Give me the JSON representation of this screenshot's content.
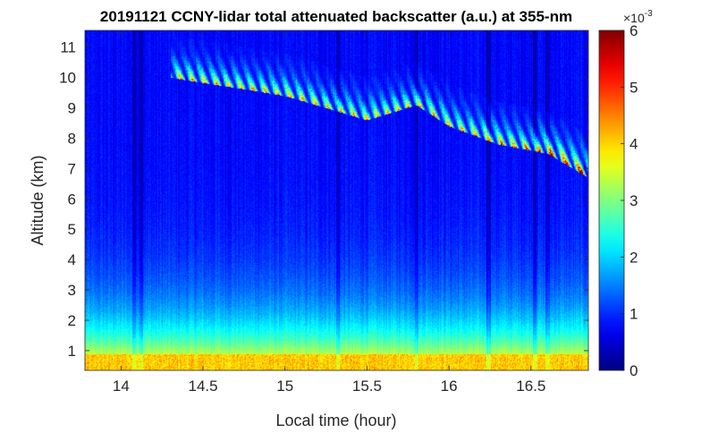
{
  "chart_data": {
    "type": "heatmap",
    "title": "20191121 CCNY-lidar total attenuated backscatter (a.u.) at 355-nm",
    "xlabel": "Local time (hour)",
    "ylabel": "Altitude (km)",
    "xlim": [
      13.78,
      16.85
    ],
    "ylim": [
      0.35,
      11.55
    ],
    "x_ticks": [
      14,
      14.5,
      15,
      15.5,
      16,
      16.5
    ],
    "x_tick_labels": [
      "14",
      "14.5",
      "15",
      "15.5",
      "16",
      "16.5"
    ],
    "y_ticks": [
      1,
      2,
      3,
      4,
      5,
      6,
      7,
      8,
      9,
      10,
      11
    ],
    "y_tick_labels": [
      "1",
      "2",
      "3",
      "4",
      "5",
      "6",
      "7",
      "8",
      "9",
      "10",
      "11"
    ],
    "colormap": "jet",
    "colorbar": {
      "min": 0,
      "max": 6,
      "ticks": [
        0,
        1,
        2,
        3,
        4,
        5,
        6
      ],
      "tick_labels": [
        "0",
        "1",
        "2",
        "3",
        "4",
        "5",
        "6"
      ],
      "multiplier_base": "×10",
      "multiplier_exponent": "-3"
    },
    "colors": {
      "axis": "#262626",
      "background": "#ffffff"
    },
    "features": {
      "boundary_layer": {
        "top_km": 0.9,
        "value_range": [
          3.6,
          4.4
        ]
      },
      "cirrus_base_km": [
        {
          "x": 14.3,
          "y": 10.0
        },
        {
          "x": 14.6,
          "y": 9.75
        },
        {
          "x": 15.0,
          "y": 9.4
        },
        {
          "x": 15.5,
          "y": 8.6
        },
        {
          "x": 15.8,
          "y": 9.1
        },
        {
          "x": 16.0,
          "y": 8.4
        },
        {
          "x": 16.3,
          "y": 7.8
        },
        {
          "x": 16.6,
          "y": 7.5
        },
        {
          "x": 16.85,
          "y": 6.7
        }
      ]
    }
  }
}
